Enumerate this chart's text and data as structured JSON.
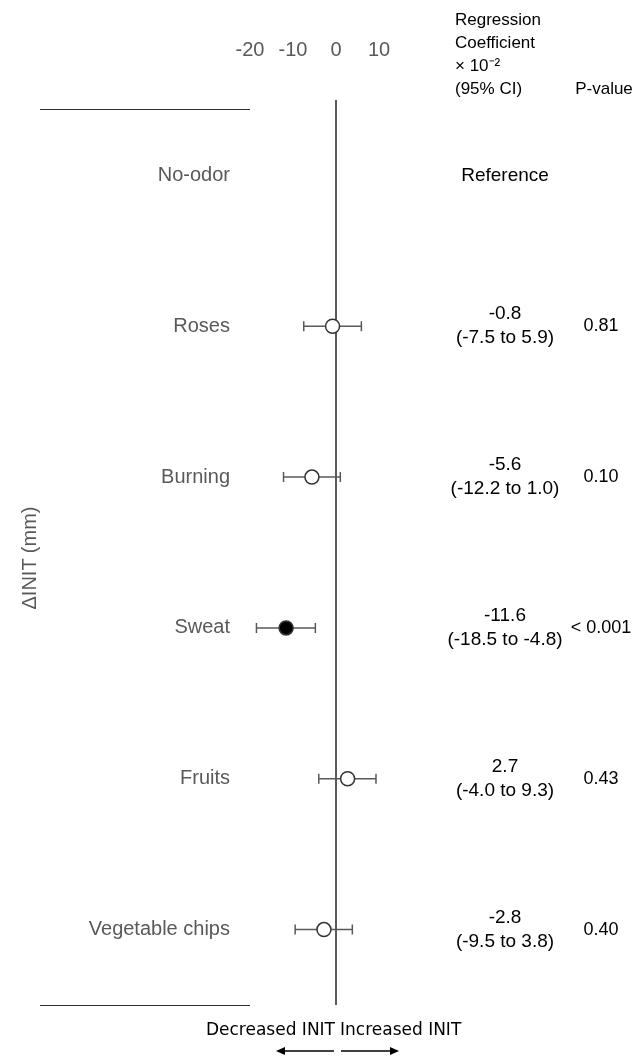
{
  "chart_data": {
    "type": "scatter",
    "orientation": "horizontal",
    "marker": "circle",
    "categories": [
      "No-odor",
      "Roses",
      "Burning",
      "Sweat",
      "Fruits",
      "Vegetable chips"
    ],
    "values": [
      null,
      -0.8,
      -5.6,
      -11.6,
      2.7,
      -2.8
    ],
    "errors": [
      null,
      [
        -7.5,
        5.9
      ],
      [
        -12.2,
        1.0
      ],
      [
        -18.5,
        -4.8
      ],
      [
        -4.0,
        9.3
      ],
      [
        -9.5,
        3.8
      ]
    ],
    "colors": [
      null,
      "#ffffff",
      "#ffffff",
      "#000000",
      "#ffffff",
      "#ffffff"
    ],
    "value_labels": [
      "Reference",
      "-0.8\n(-7.5 to 5.9)",
      "-5.6\n(-12.2 to 1.0)",
      "-11.6\n(-18.5 to -4.8)",
      "2.7\n(-4.0 to 9.3)",
      "-2.8\n(-9.5 to 3.8)"
    ],
    "xlim": [
      -20,
      10
    ],
    "xticks": [
      -20,
      -10,
      0,
      10
    ],
    "ylabel": "ΔINIT (mm)",
    "ref_lines": [
      {
        "axis": "x",
        "value": 0,
        "color": "#595959"
      }
    ],
    "annotations": [
      "Regression\nCoefficient\n× 10⁻²\n(95% CI)",
      "P-value",
      "Decreased INIT",
      "Increased INIT",
      "0.81",
      "0.10",
      "< 0.001",
      "0.43",
      "0.40"
    ]
  }
}
